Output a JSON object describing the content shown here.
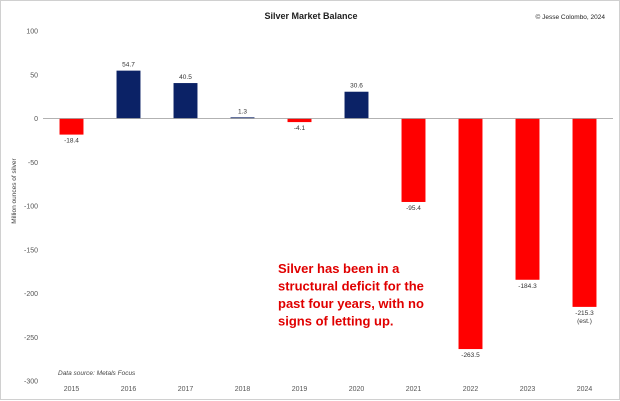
{
  "chart_data": {
    "type": "bar",
    "title": "Silver Market Balance",
    "copyright": "© Jesse Colombo, 2024",
    "ylabel": "Million ounces of silver",
    "xlabel": "",
    "ylim": [
      -300,
      100
    ],
    "yticks": [
      100,
      50,
      0,
      -50,
      -100,
      -150,
      -200,
      -250,
      -300
    ],
    "grid": false,
    "categories": [
      "2015",
      "2016",
      "2017",
      "2018",
      "2019",
      "2020",
      "2021",
      "2022",
      "2023",
      "2024"
    ],
    "values": [
      -18.4,
      54.7,
      40.5,
      1.3,
      -4.1,
      30.6,
      -95.4,
      -263.5,
      -184.3,
      -215.3
    ],
    "data_labels": [
      "-18.4",
      "54.7",
      "40.5",
      "1.3",
      "-4.1",
      "30.6",
      "-95.4",
      "-263.5",
      "-184.3",
      "-215.3"
    ],
    "data_label_suffix": [
      "",
      "",
      "",
      "",
      "",
      "",
      "",
      "",
      "",
      "(est.)"
    ],
    "annotation": [
      "Silver has been in a",
      "structural deficit for the",
      "past four years, with no",
      "signs of letting up."
    ],
    "source": "Data source: Metals Focus",
    "colors": {
      "surplus": "#0b2266",
      "deficit": "#ff0000",
      "axis": "#999999",
      "annotation": "#e00000"
    }
  }
}
